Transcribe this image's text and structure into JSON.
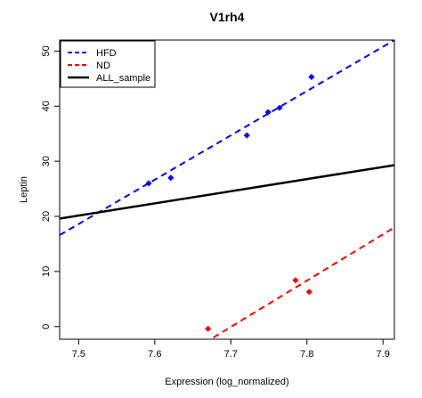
{
  "chart_data": {
    "type": "scatter",
    "title": "V1rh4",
    "xlabel": "Expression (log_normalized)",
    "ylabel": "Leptin",
    "xlim": [
      7.475,
      7.915
    ],
    "ylim": [
      -2.3,
      52
    ],
    "x_ticks": [
      7.5,
      7.6,
      7.7,
      7.8,
      7.9
    ],
    "x_tick_labels": [
      "7.5",
      "7.6",
      "7.7",
      "7.8",
      "7.9"
    ],
    "y_ticks": [
      0,
      10,
      20,
      30,
      40,
      50
    ],
    "y_tick_labels": [
      "0",
      "10",
      "20",
      "30",
      "40",
      "50"
    ],
    "grid": false,
    "legend": {
      "position": "top-left",
      "entries": [
        {
          "label": "HFD",
          "color": "#0000ff",
          "style": "dashed"
        },
        {
          "label": "ND",
          "color": "#ff0000",
          "style": "dashed"
        },
        {
          "label": "ALL_sample",
          "color": "#000000",
          "style": "solid"
        }
      ]
    },
    "series": [
      {
        "name": "HFD",
        "color": "#0000ff",
        "points": [
          {
            "x": 7.592,
            "y": 26.0
          },
          {
            "x": 7.621,
            "y": 27.0
          },
          {
            "x": 7.721,
            "y": 34.7
          },
          {
            "x": 7.749,
            "y": 38.9
          },
          {
            "x": 7.764,
            "y": 39.7
          },
          {
            "x": 7.806,
            "y": 45.3
          }
        ],
        "fit": {
          "x1": 7.475,
          "y1": 16.6,
          "x2": 7.915,
          "y2": 52.0
        }
      },
      {
        "name": "ND",
        "color": "#ff0000",
        "points": [
          {
            "x": 7.67,
            "y": -0.4
          },
          {
            "x": 7.785,
            "y": 8.4
          },
          {
            "x": 7.803,
            "y": 6.3
          }
        ],
        "fit": {
          "x1": 7.665,
          "y1": -3.0,
          "x2": 7.915,
          "y2": 18.0
        }
      },
      {
        "name": "ALL_sample",
        "color": "#000000",
        "points": [],
        "fit": {
          "x1": 7.475,
          "y1": 19.6,
          "x2": 7.915,
          "y2": 29.3
        }
      }
    ]
  }
}
